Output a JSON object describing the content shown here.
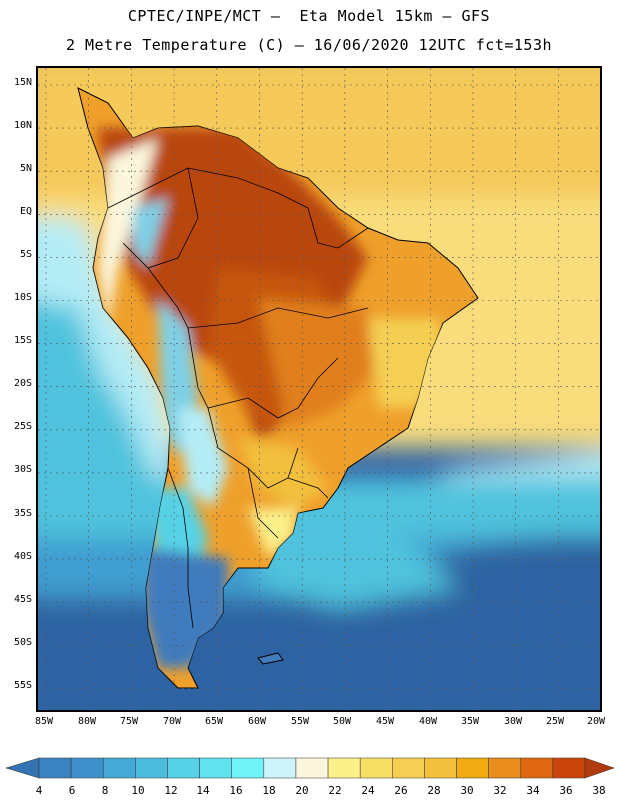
{
  "header": {
    "title_line1": "CPTEC/INPE/MCT –  Eta Model 15km – GFS",
    "title_line2": "2 Metre Temperature (C) – 16/06/2020 12UTC fct=153h"
  },
  "map": {
    "lat_labels": [
      "15N",
      "10N",
      "5N",
      "EQ",
      "5S",
      "10S",
      "15S",
      "20S",
      "25S",
      "30S",
      "35S",
      "40S",
      "45S",
      "50S",
      "55S"
    ],
    "lon_labels": [
      "85W",
      "80W",
      "75W",
      "70W",
      "65W",
      "60W",
      "55W",
      "50W",
      "45W",
      "40W",
      "35W",
      "30W",
      "25W",
      "20W"
    ],
    "colors": {
      "ocean_cold": "#2f63a3",
      "ocean_mid": "#3f9ed0",
      "ocean_cool": "#4fc3dd",
      "ocean_pale": "#b4ecf6",
      "tropics_sea": "#f5c95a",
      "tropics_pale": "#f9dd7d",
      "land_hot": "#b9470a",
      "land_warm": "#e07f1a",
      "land_orange": "#efa02b",
      "land_andes": "#7fd0e6",
      "land_patagonia": "#3f7cbd",
      "border": "#000000",
      "grid": "#555555"
    }
  },
  "colorbar": {
    "levels": [
      "4",
      "6",
      "8",
      "10",
      "12",
      "14",
      "16",
      "18",
      "20",
      "22",
      "24",
      "26",
      "28",
      "30",
      "32",
      "34",
      "36",
      "38"
    ],
    "colors": [
      "#3574b2",
      "#3a82c0",
      "#3f91cc",
      "#45a9d8",
      "#4cbcdc",
      "#56d2e6",
      "#60e3ef",
      "#6ff3f7",
      "#cdf4fb",
      "#fbf6dc",
      "#fbf08a",
      "#f7df66",
      "#f5cf53",
      "#f2c03d",
      "#f0aa12",
      "#e98d1e",
      "#de6710",
      "#c9450b",
      "#b33a0a"
    ]
  }
}
